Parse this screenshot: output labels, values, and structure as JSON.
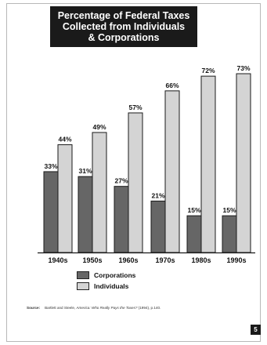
{
  "chart_data": {
    "type": "bar",
    "title": [
      "Percentage of Federal Taxes",
      "Collected from Individuals",
      "& Corporations"
    ],
    "categories": [
      "1940s",
      "1950s",
      "1960s",
      "1970s",
      "1980s",
      "1990s"
    ],
    "series": [
      {
        "name": "Corporations",
        "values": [
          33,
          31,
          27,
          21,
          15,
          15
        ],
        "labels": [
          "33%",
          "31%",
          "27%",
          "21%",
          "15%",
          "15%"
        ],
        "color": "#666666"
      },
      {
        "name": "Individuals",
        "values": [
          44,
          49,
          57,
          66,
          72,
          73
        ],
        "labels": [
          "44%",
          "49%",
          "57%",
          "66%",
          "72%",
          "73%"
        ],
        "color": "#d4d4d4"
      }
    ],
    "ylim": [
      0,
      73
    ],
    "grid": false,
    "legend_position": "bottom-left"
  },
  "source": {
    "label": "Source:",
    "text_before": "Bartlett and Steele, ",
    "title_italic": "America: Who Really Pays the Taxes?",
    "text_after": " (1994), p.140."
  },
  "page_number": "5"
}
